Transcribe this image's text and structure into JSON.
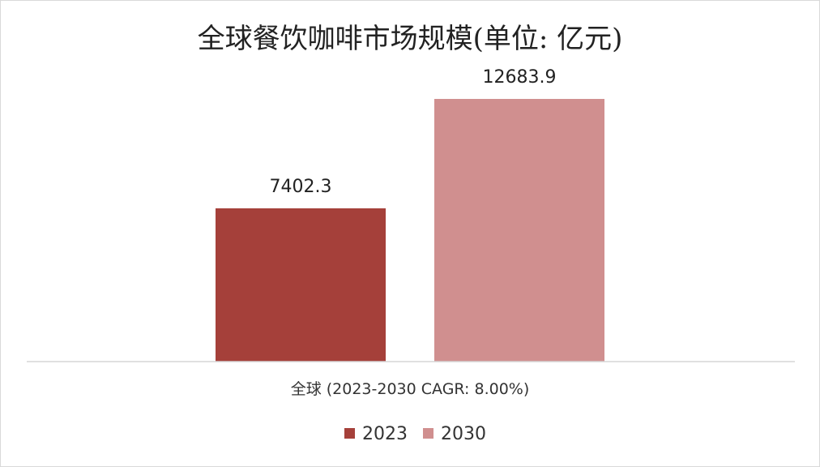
{
  "chart_data": {
    "type": "bar",
    "title": "全球餐饮咖啡市场规模(单位: 亿元)",
    "categories": [
      "全球 (2023-2030 CAGR: 8.00%)"
    ],
    "series": [
      {
        "name": "2023",
        "values": [
          7402.3
        ],
        "color": "#a5403a",
        "value_label": "7402.3"
      },
      {
        "name": "2030",
        "values": [
          12683.9
        ],
        "color": "#d08f8f",
        "value_label": "12683.9"
      }
    ],
    "ylim": [
      0,
      17500
    ],
    "grid": false,
    "legend_position": "bottom"
  }
}
